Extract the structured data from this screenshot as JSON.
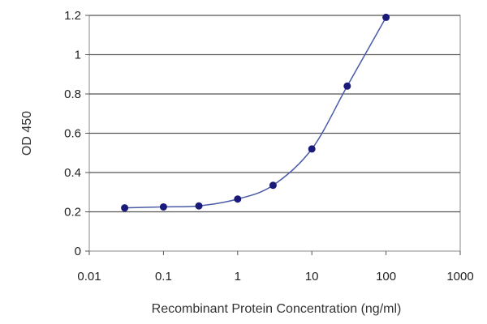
{
  "chart_data": {
    "type": "line",
    "title": "",
    "xlabel": "Recombinant Protein Concentration (ng/ml)",
    "ylabel": "OD 450",
    "x_scale": "log",
    "xlim": [
      0.01,
      1000
    ],
    "ylim": [
      0,
      1.2
    ],
    "x_ticks": [
      "0.01",
      "0.1",
      "1",
      "10",
      "100",
      "1000"
    ],
    "y_ticks": [
      "0",
      "0.2",
      "0.4",
      "0.6",
      "0.8",
      "1",
      "1.2"
    ],
    "grid": "horizontal",
    "legend": "none",
    "series": [
      {
        "points": [
          {
            "x": 0.03,
            "y": 0.22
          },
          {
            "x": 0.1,
            "y": 0.225
          },
          {
            "x": 0.3,
            "y": 0.23
          },
          {
            "x": 1,
            "y": 0.265
          },
          {
            "x": 3,
            "y": 0.335
          },
          {
            "x": 10,
            "y": 0.52
          },
          {
            "x": 30,
            "y": 0.84
          },
          {
            "x": 100,
            "y": 1.19
          }
        ],
        "marker_color": "#1a1a7a",
        "line_color": "#4a5aa8"
      }
    ]
  }
}
